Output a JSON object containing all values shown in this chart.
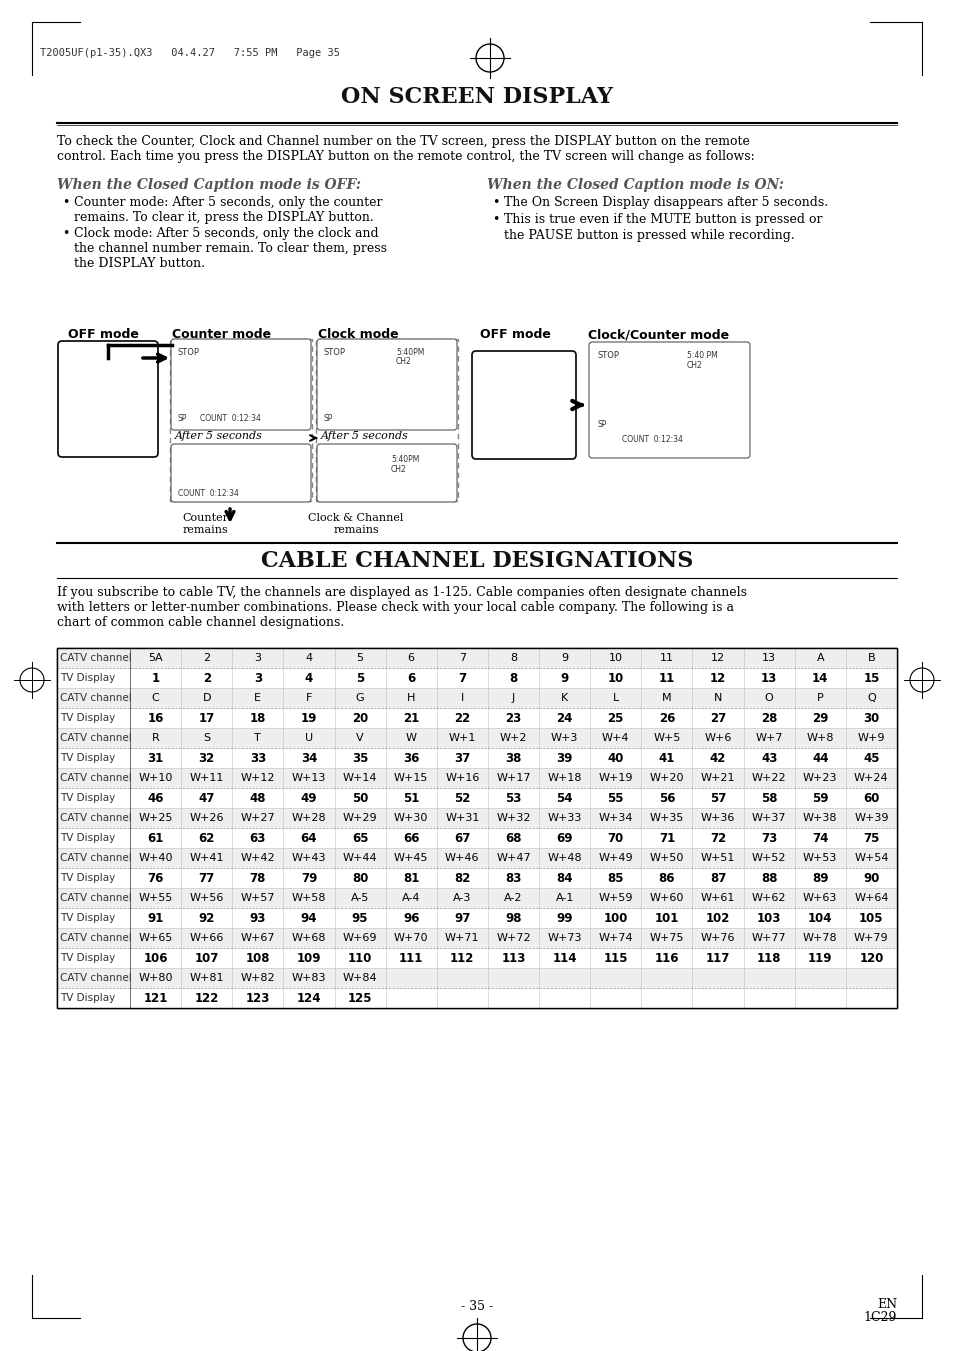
{
  "page_header": "T2005UF(p1-35).QX3   04.4.27   7:55 PM   Page 35",
  "main_title": "ON SCREEN DISPLAY",
  "intro_text": "To check the Counter, Clock and Channel number on the TV screen, press the DISPLAY button on the remote\ncontrol. Each time you press the DISPLAY button on the remote control, the TV screen will change as follows:",
  "off_heading": "When the Closed Caption mode is OFF:",
  "on_heading": "When the Closed Caption mode is ON:",
  "off_bullets": [
    "Counter mode: After 5 seconds, only the counter\nremains. To clear it, press the DISPLAY button.",
    "Clock mode: After 5 seconds, only the clock and\nthe channel number remain. To clear them, press\nthe DISPLAY button."
  ],
  "on_bullets": [
    "The On Screen Display disappears after 5 seconds.",
    "This is true even if the MUTE button is pressed or\nthe PAUSE button is pressed while recording."
  ],
  "counter_remains": "Counter\nremains",
  "clock_channel_remains": "Clock & Channel\nremains",
  "after_5sec": "After 5 seconds",
  "cable_title": "CABLE CHANNEL DESIGNATIONS",
  "cable_intro": "If you subscribe to cable TV, the channels are displayed as 1-125. Cable companies often designate channels\nwith letters or letter-number combinations. Please check with your local cable company. The following is a\nchart of common cable channel designations.",
  "table_rows": [
    [
      "CATV channel",
      "5A",
      "2",
      "3",
      "4",
      "5",
      "6",
      "7",
      "8",
      "9",
      "10",
      "11",
      "12",
      "13",
      "A",
      "B"
    ],
    [
      "TV Display",
      "1",
      "2",
      "3",
      "4",
      "5",
      "6",
      "7",
      "8",
      "9",
      "10",
      "11",
      "12",
      "13",
      "14",
      "15"
    ],
    [
      "CATV channel",
      "C",
      "D",
      "E",
      "F",
      "G",
      "H",
      "I",
      "J",
      "K",
      "L",
      "M",
      "N",
      "O",
      "P",
      "Q"
    ],
    [
      "TV Display",
      "16",
      "17",
      "18",
      "19",
      "20",
      "21",
      "22",
      "23",
      "24",
      "25",
      "26",
      "27",
      "28",
      "29",
      "30"
    ],
    [
      "CATV channel",
      "R",
      "S",
      "T",
      "U",
      "V",
      "W",
      "W+1",
      "W+2",
      "W+3",
      "W+4",
      "W+5",
      "W+6",
      "W+7",
      "W+8",
      "W+9"
    ],
    [
      "TV Display",
      "31",
      "32",
      "33",
      "34",
      "35",
      "36",
      "37",
      "38",
      "39",
      "40",
      "41",
      "42",
      "43",
      "44",
      "45"
    ],
    [
      "CATV channel",
      "W+10",
      "W+11",
      "W+12",
      "W+13",
      "W+14",
      "W+15",
      "W+16",
      "W+17",
      "W+18",
      "W+19",
      "W+20",
      "W+21",
      "W+22",
      "W+23",
      "W+24"
    ],
    [
      "TV Display",
      "46",
      "47",
      "48",
      "49",
      "50",
      "51",
      "52",
      "53",
      "54",
      "55",
      "56",
      "57",
      "58",
      "59",
      "60"
    ],
    [
      "CATV channel",
      "W+25",
      "W+26",
      "W+27",
      "W+28",
      "W+29",
      "W+30",
      "W+31",
      "W+32",
      "W+33",
      "W+34",
      "W+35",
      "W+36",
      "W+37",
      "W+38",
      "W+39"
    ],
    [
      "TV Display",
      "61",
      "62",
      "63",
      "64",
      "65",
      "66",
      "67",
      "68",
      "69",
      "70",
      "71",
      "72",
      "73",
      "74",
      "75"
    ],
    [
      "CATV channel",
      "W+40",
      "W+41",
      "W+42",
      "W+43",
      "W+44",
      "W+45",
      "W+46",
      "W+47",
      "W+48",
      "W+49",
      "W+50",
      "W+51",
      "W+52",
      "W+53",
      "W+54"
    ],
    [
      "TV Display",
      "76",
      "77",
      "78",
      "79",
      "80",
      "81",
      "82",
      "83",
      "84",
      "85",
      "86",
      "87",
      "88",
      "89",
      "90"
    ],
    [
      "CATV channel",
      "W+55",
      "W+56",
      "W+57",
      "W+58",
      "A-5",
      "A-4",
      "A-3",
      "A-2",
      "A-1",
      "W+59",
      "W+60",
      "W+61",
      "W+62",
      "W+63",
      "W+64"
    ],
    [
      "TV Display",
      "91",
      "92",
      "93",
      "94",
      "95",
      "96",
      "97",
      "98",
      "99",
      "100",
      "101",
      "102",
      "103",
      "104",
      "105"
    ],
    [
      "CATV channel",
      "W+65",
      "W+66",
      "W+67",
      "W+68",
      "W+69",
      "W+70",
      "W+71",
      "W+72",
      "W+73",
      "W+74",
      "W+75",
      "W+76",
      "W+77",
      "W+78",
      "W+79"
    ],
    [
      "TV Display",
      "106",
      "107",
      "108",
      "109",
      "110",
      "111",
      "112",
      "113",
      "114",
      "115",
      "116",
      "117",
      "118",
      "119",
      "120"
    ],
    [
      "CATV channel",
      "W+80",
      "W+81",
      "W+82",
      "W+83",
      "W+84",
      "",
      "",
      "",
      "",
      "",
      "",
      "",
      "",
      "",
      ""
    ],
    [
      "TV Display",
      "121",
      "122",
      "123",
      "124",
      "125",
      "",
      "",
      "",
      "",
      "",
      "",
      "",
      "",
      "",
      ""
    ]
  ],
  "page_number": "- 35 -",
  "page_code": "EN\n1C29",
  "background_color": "#ffffff"
}
